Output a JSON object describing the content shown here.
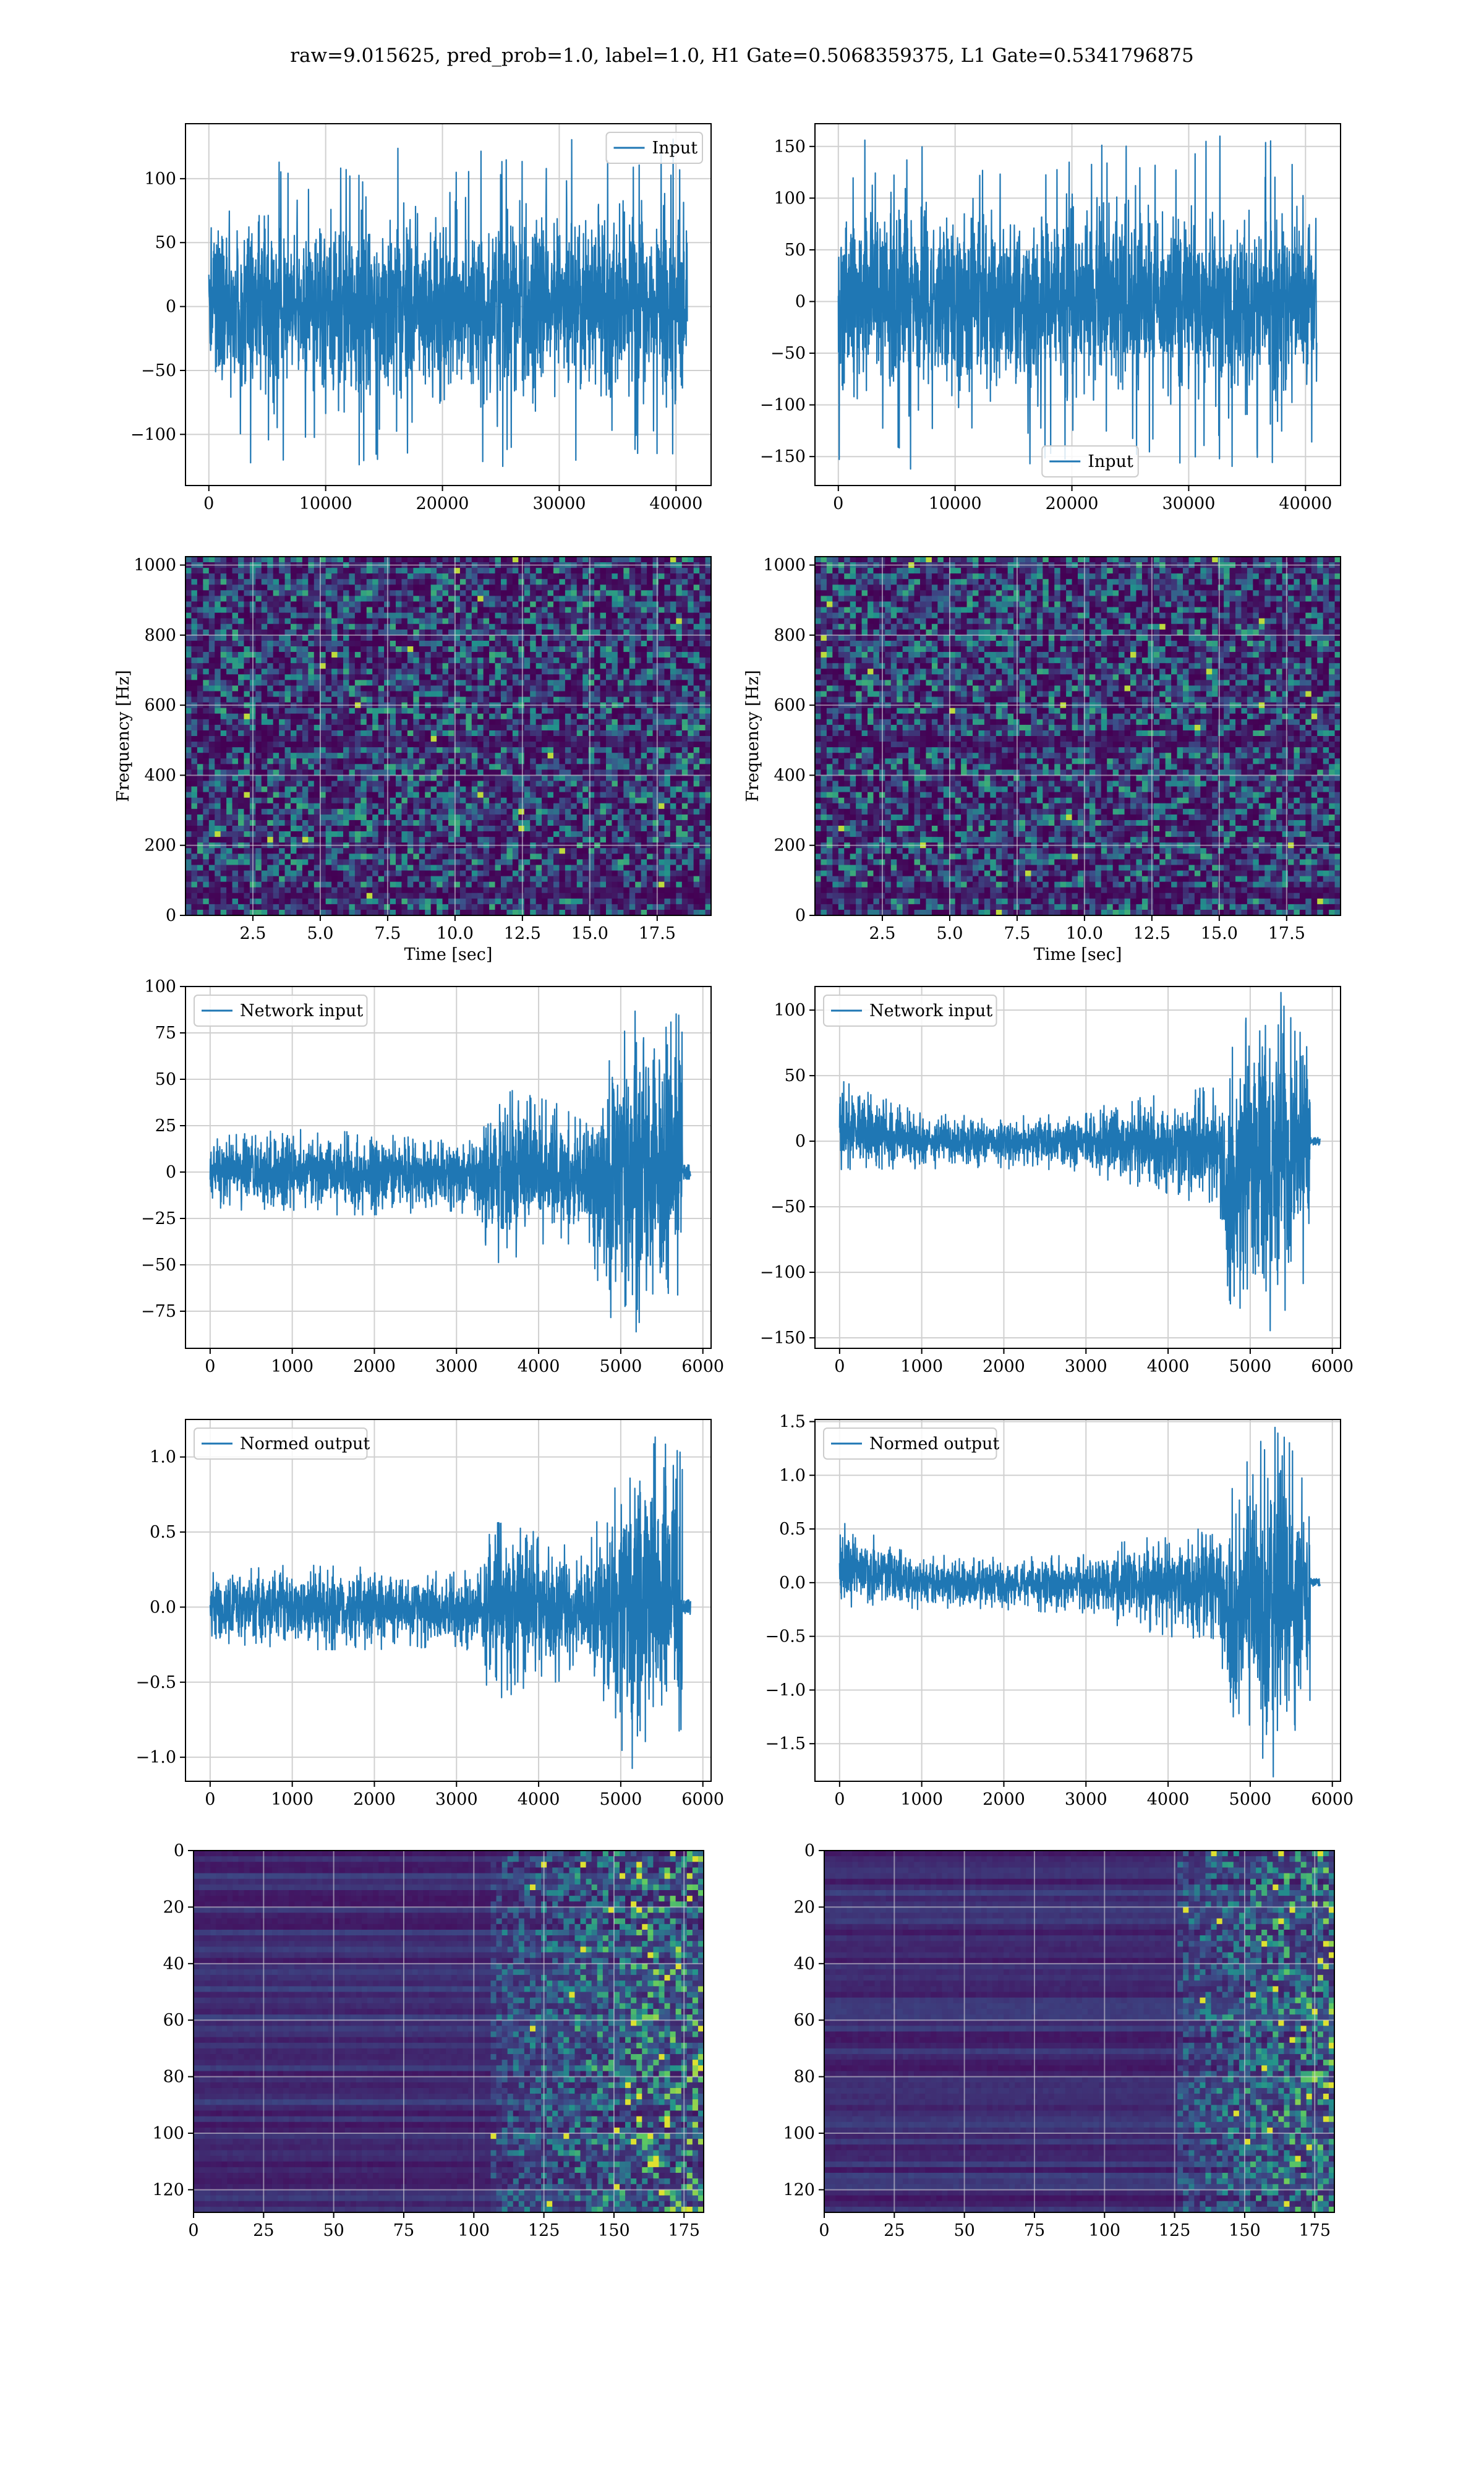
{
  "figure": {
    "suptitle": "raw=9.015625, pred_prob=1.0, label=1.0, H1 Gate=0.5068359375, L1 Gate=0.5341796875"
  },
  "colors": {
    "series": "#1f77b4",
    "grid": "#d0d0d0",
    "axes": "#000000",
    "viridis_low": "#440154",
    "viridis_mid": "#21918c",
    "viridis_high": "#fde725"
  },
  "chart_data": [
    {
      "id": "h1-input",
      "type": "line",
      "title": "",
      "xlabel": "",
      "ylabel": "",
      "xlim": [
        -2000,
        43000
      ],
      "ylim": [
        -140,
        143
      ],
      "xticks": [
        0,
        10000,
        20000,
        30000,
        40000
      ],
      "xtick_labels": [
        "0",
        "10000",
        "20000",
        "30000",
        "40000"
      ],
      "yticks": [
        -100,
        -50,
        0,
        50,
        100
      ],
      "ytick_labels": [
        "−100",
        "−50",
        "0",
        "50",
        "100"
      ],
      "grid": true,
      "legend": "upper right",
      "series": [
        {
          "name": "Input",
          "x_range": [
            0,
            40960
          ],
          "envelope_min": -125,
          "envelope_max": 132,
          "typical_amplitude": 60
        }
      ]
    },
    {
      "id": "l1-input",
      "type": "line",
      "title": "",
      "xlabel": "",
      "ylabel": "",
      "xlim": [
        -2000,
        43000
      ],
      "ylim": [
        -178,
        172
      ],
      "xticks": [
        0,
        10000,
        20000,
        30000,
        40000
      ],
      "xtick_labels": [
        "0",
        "10000",
        "20000",
        "30000",
        "40000"
      ],
      "yticks": [
        -150,
        -100,
        -50,
        0,
        50,
        100,
        150
      ],
      "ytick_labels": [
        "−150",
        "−100",
        "−50",
        "0",
        "50",
        "100",
        "150"
      ],
      "grid": true,
      "legend": "lower center",
      "series": [
        {
          "name": "Input",
          "x_range": [
            0,
            40960
          ],
          "envelope_min": -162,
          "envelope_max": 160,
          "typical_amplitude": 75
        }
      ]
    },
    {
      "id": "h1-spectrogram",
      "type": "heatmap",
      "title": "",
      "xlabel": "Time [sec]",
      "ylabel": "Frequency [Hz]",
      "xlim": [
        0,
        19.5
      ],
      "ylim": [
        0,
        1024
      ],
      "xticks": [
        2.5,
        5,
        7.5,
        10,
        12.5,
        15,
        17.5
      ],
      "xtick_labels": [
        "2.5",
        "5.0",
        "7.5",
        "10.0",
        "12.5",
        "15.0",
        "17.5"
      ],
      "yticks": [
        0,
        200,
        400,
        600,
        800,
        1000
      ],
      "ytick_labels": [
        "0",
        "200",
        "400",
        "600",
        "800",
        "1000"
      ],
      "grid": true,
      "colormap": "viridis",
      "dark_bands_hz": [
        495,
        60
      ]
    },
    {
      "id": "l1-spectrogram",
      "type": "heatmap",
      "title": "",
      "xlabel": "Time [sec]",
      "ylabel": "Frequency [Hz]",
      "xlim": [
        0,
        19.5
      ],
      "ylim": [
        0,
        1024
      ],
      "xticks": [
        2.5,
        5,
        7.5,
        10,
        12.5,
        15,
        17.5
      ],
      "xtick_labels": [
        "2.5",
        "5.0",
        "7.5",
        "10.0",
        "12.5",
        "15.0",
        "17.5"
      ],
      "yticks": [
        0,
        200,
        400,
        600,
        800,
        1000
      ],
      "ytick_labels": [
        "0",
        "200",
        "400",
        "600",
        "800",
        "1000"
      ],
      "grid": true,
      "colormap": "viridis",
      "dark_bands_hz": [
        500,
        60
      ]
    },
    {
      "id": "h1-network-input",
      "type": "line",
      "title": "",
      "xlabel": "",
      "ylabel": "",
      "xlim": [
        -300,
        6100
      ],
      "ylim": [
        -95,
        100
      ],
      "xticks": [
        0,
        1000,
        2000,
        3000,
        4000,
        5000,
        6000
      ],
      "xtick_labels": [
        "0",
        "1000",
        "2000",
        "3000",
        "4000",
        "5000",
        "6000"
      ],
      "yticks": [
        -75,
        -50,
        -25,
        0,
        25,
        50,
        75,
        100
      ],
      "ytick_labels": [
        "−75",
        "−50",
        "−25",
        "0",
        "25",
        "50",
        "75",
        "100"
      ],
      "grid": true,
      "legend": "upper left",
      "series": [
        {
          "name": "Network input",
          "x_range": [
            0,
            5850
          ],
          "signal_end": 5750,
          "envelope_x": [
            0,
            1000,
            2000,
            3000,
            3300,
            3400,
            4000,
            4600,
            4800,
            5000,
            5300,
            5500,
            5750
          ],
          "envelope_upper": [
            18,
            22,
            20,
            18,
            20,
            45,
            38,
            30,
            55,
            80,
            92,
            85,
            80
          ],
          "envelope_lower": [
            -18,
            -22,
            -22,
            -20,
            -25,
            -48,
            -40,
            -35,
            -70,
            -85,
            -80,
            -70,
            -65
          ],
          "tail_amplitude": 4
        }
      ]
    },
    {
      "id": "l1-network-input",
      "type": "line",
      "title": "",
      "xlabel": "",
      "ylabel": "",
      "xlim": [
        -300,
        6100
      ],
      "ylim": [
        -158,
        118
      ],
      "xticks": [
        0,
        1000,
        2000,
        3000,
        4000,
        5000,
        6000
      ],
      "xtick_labels": [
        "0",
        "1000",
        "2000",
        "3000",
        "4000",
        "5000",
        "6000"
      ],
      "yticks": [
        -150,
        -100,
        -50,
        0,
        50,
        100
      ],
      "ytick_labels": [
        "−150",
        "−100",
        "−50",
        "0",
        "50",
        "100"
      ],
      "grid": true,
      "legend": "upper left",
      "series": [
        {
          "name": "Network input",
          "x_range": [
            0,
            5850
          ],
          "signal_end": 5730,
          "envelope_x": [
            0,
            1000,
            2000,
            3000,
            3300,
            4000,
            4600,
            4800,
            5000,
            5300,
            5500,
            5730
          ],
          "envelope_upper": [
            45,
            20,
            18,
            20,
            28,
            35,
            40,
            70,
            95,
            112,
            100,
            85
          ],
          "envelope_lower": [
            -20,
            -20,
            -20,
            -22,
            -30,
            -38,
            -50,
            -140,
            -120,
            -145,
            -110,
            -100
          ],
          "tail_amplitude": 3
        }
      ]
    },
    {
      "id": "h1-normed-output",
      "type": "line",
      "title": "",
      "xlabel": "",
      "ylabel": "",
      "xlim": [
        -300,
        6100
      ],
      "ylim": [
        -1.16,
        1.25
      ],
      "xticks": [
        0,
        1000,
        2000,
        3000,
        4000,
        5000,
        6000
      ],
      "xtick_labels": [
        "0",
        "1000",
        "2000",
        "3000",
        "4000",
        "5000",
        "6000"
      ],
      "yticks": [
        -1.0,
        -0.5,
        0.0,
        0.5,
        1.0
      ],
      "ytick_labels": [
        "−1.0",
        "−0.5",
        "0.0",
        "0.5",
        "1.0"
      ],
      "grid": true,
      "legend": "upper left",
      "series": [
        {
          "name": "Normed output",
          "x_range": [
            0,
            5850
          ],
          "signal_end": 5750,
          "envelope_x": [
            0,
            1000,
            2000,
            3000,
            3300,
            3400,
            4000,
            4600,
            4800,
            5000,
            5300,
            5500,
            5750
          ],
          "envelope_upper": [
            0.22,
            0.27,
            0.25,
            0.22,
            0.25,
            0.55,
            0.47,
            0.37,
            0.68,
            0.98,
            1.13,
            1.05,
            0.98
          ],
          "envelope_lower": [
            -0.22,
            -0.27,
            -0.27,
            -0.25,
            -0.3,
            -0.6,
            -0.5,
            -0.43,
            -0.87,
            -1.05,
            -0.99,
            -0.87,
            -0.8
          ],
          "tail_amplitude": 0.05
        }
      ]
    },
    {
      "id": "l1-normed-output",
      "type": "line",
      "title": "",
      "xlabel": "",
      "ylabel": "",
      "xlim": [
        -300,
        6100
      ],
      "ylim": [
        -1.85,
        1.52
      ],
      "xticks": [
        0,
        1000,
        2000,
        3000,
        4000,
        5000,
        6000
      ],
      "xtick_labels": [
        "0",
        "1000",
        "2000",
        "3000",
        "4000",
        "5000",
        "6000"
      ],
      "yticks": [
        -1.5,
        -1.0,
        -0.5,
        0.0,
        0.5,
        1.0,
        1.5
      ],
      "ytick_labels": [
        "−1.5",
        "−1.0",
        "−0.5",
        "0.0",
        "0.5",
        "1.0",
        "1.5"
      ],
      "grid": true,
      "legend": "upper left",
      "series": [
        {
          "name": "Normed output",
          "x_range": [
            0,
            5850
          ],
          "signal_end": 5730,
          "envelope_x": [
            0,
            1000,
            2000,
            3000,
            3300,
            4000,
            4600,
            4800,
            5000,
            5300,
            5500,
            5730
          ],
          "envelope_upper": [
            0.55,
            0.25,
            0.22,
            0.25,
            0.34,
            0.43,
            0.5,
            0.85,
            1.15,
            1.37,
            1.22,
            1.05
          ],
          "envelope_lower": [
            -0.25,
            -0.25,
            -0.25,
            -0.27,
            -0.37,
            -0.47,
            -0.62,
            -1.72,
            -1.45,
            -1.75,
            -1.35,
            -1.22
          ],
          "tail_amplitude": 0.04
        }
      ]
    },
    {
      "id": "h1-feature-map",
      "type": "heatmap",
      "title": "",
      "xlabel": "",
      "ylabel": "",
      "xlim": [
        0,
        182
      ],
      "ylim": [
        128,
        0
      ],
      "xticks": [
        0,
        25,
        50,
        75,
        100,
        125,
        150,
        175
      ],
      "xtick_labels": [
        "0",
        "25",
        "50",
        "75",
        "100",
        "125",
        "150",
        "175"
      ],
      "yticks": [
        0,
        20,
        40,
        60,
        80,
        100,
        120
      ],
      "ytick_labels": [
        "0",
        "20",
        "40",
        "60",
        "80",
        "100",
        "120"
      ],
      "grid": true,
      "colormap": "viridis",
      "activity_onset_column": 105
    },
    {
      "id": "l1-feature-map",
      "type": "heatmap",
      "title": "",
      "xlabel": "",
      "ylabel": "",
      "xlim": [
        0,
        182
      ],
      "ylim": [
        128,
        0
      ],
      "xticks": [
        0,
        25,
        50,
        75,
        100,
        125,
        150,
        175
      ],
      "xtick_labels": [
        "0",
        "25",
        "50",
        "75",
        "100",
        "125",
        "150",
        "175"
      ],
      "yticks": [
        0,
        20,
        40,
        60,
        80,
        100,
        120
      ],
      "ytick_labels": [
        "0",
        "20",
        "40",
        "60",
        "80",
        "100",
        "120"
      ],
      "grid": true,
      "colormap": "viridis",
      "activity_onset_column": 125
    }
  ]
}
